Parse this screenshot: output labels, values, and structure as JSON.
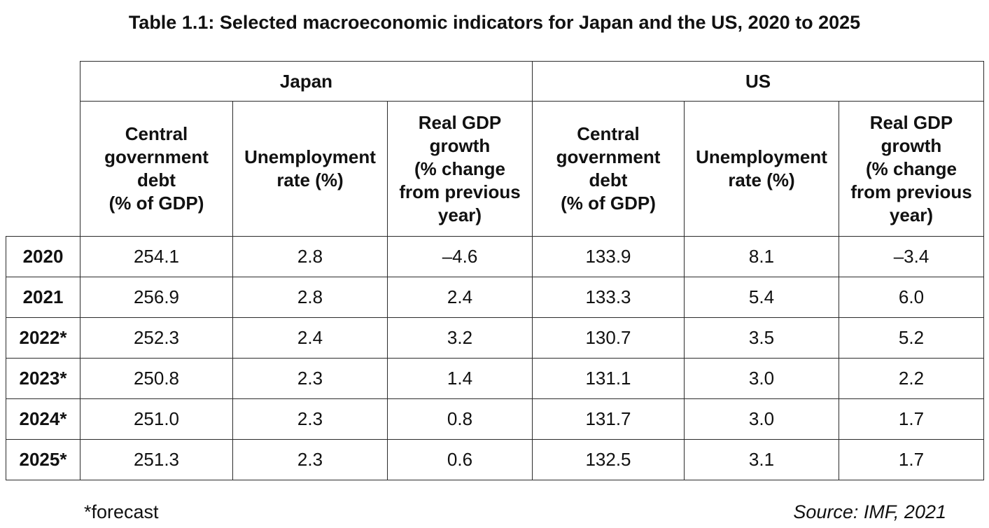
{
  "title": "Table 1.1: Selected macroeconomic indicators for Japan and the US, 2020 to 2025",
  "groups": [
    "Japan",
    "US"
  ],
  "columns": [
    "Central government debt (% of GDP)",
    "Unemployment rate (%)",
    "Real GDP growth (% change from previous year)",
    "Central government debt (% of GDP)",
    "Unemployment rate (%)",
    "Real GDP growth (% change from previous year)"
  ],
  "column_lines": [
    [
      "Central",
      "government",
      "debt",
      "(% of GDP)"
    ],
    [
      "Unemployment",
      "rate (%)"
    ],
    [
      "Real GDP",
      "growth",
      "(% change",
      "from previous",
      "year)"
    ],
    [
      "Central",
      "government",
      "debt",
      "(% of GDP)"
    ],
    [
      "Unemployment",
      "rate (%)"
    ],
    [
      "Real GDP",
      "growth",
      "(% change",
      "from previous",
      "year)"
    ]
  ],
  "rows": [
    {
      "year": "2020",
      "values": [
        "254.1",
        "2.8",
        "–4.6",
        "133.9",
        "8.1",
        "–3.4"
      ]
    },
    {
      "year": "2021",
      "values": [
        "256.9",
        "2.8",
        "2.4",
        "133.3",
        "5.4",
        "6.0"
      ]
    },
    {
      "year": "2022*",
      "values": [
        "252.3",
        "2.4",
        "3.2",
        "130.7",
        "3.5",
        "5.2"
      ]
    },
    {
      "year": "2023*",
      "values": [
        "250.8",
        "2.3",
        "1.4",
        "131.1",
        "3.0",
        "2.2"
      ]
    },
    {
      "year": "2024*",
      "values": [
        "251.0",
        "2.3",
        "0.8",
        "131.7",
        "3.0",
        "1.7"
      ]
    },
    {
      "year": "2025*",
      "values": [
        "251.3",
        "2.3",
        "0.6",
        "132.5",
        "3.1",
        "1.7"
      ]
    }
  ],
  "footnote": "*forecast",
  "source": "Source: IMF, 2021",
  "colors": {
    "border": "#2b2b2b",
    "text": "#111111",
    "background": "#ffffff"
  }
}
